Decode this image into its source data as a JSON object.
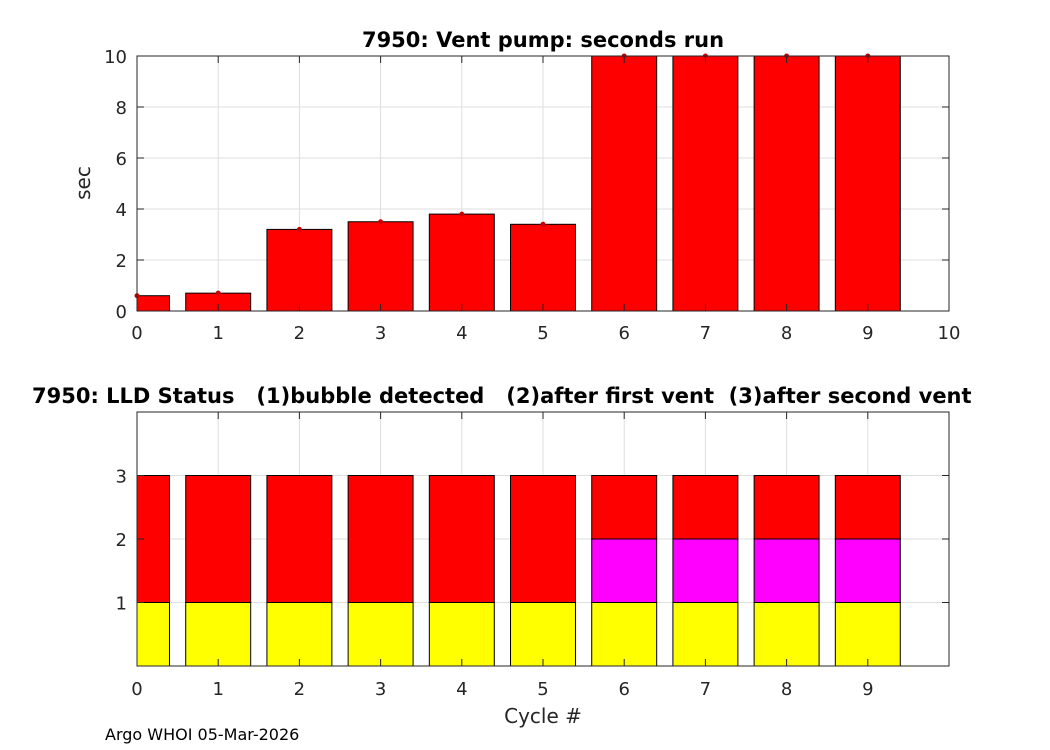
{
  "colors": {
    "bar_red": "#ff0000",
    "bar_yellow": "#ffff00",
    "bar_magenta": "#ff00ff",
    "axis": "#262626",
    "grid": "#dfdfdf"
  },
  "footer": "Argo WHOI 05-Mar-2026",
  "chart_data": [
    {
      "type": "bar",
      "title": "7950: Vent pump: seconds run",
      "xlabel": "",
      "ylabel": "sec",
      "xlim": [
        0,
        10
      ],
      "ylim": [
        0,
        10
      ],
      "x_ticks": [
        "0",
        "1",
        "2",
        "3",
        "4",
        "5",
        "6",
        "7",
        "8",
        "9",
        "10"
      ],
      "y_ticks": [
        "0",
        "2",
        "4",
        "6",
        "8",
        "10"
      ],
      "grid": true,
      "categories": [
        0,
        1,
        2,
        3,
        4,
        5,
        6,
        7,
        8,
        9
      ],
      "values": [
        0.6,
        0.7,
        3.2,
        3.5,
        3.8,
        3.4,
        10,
        10,
        10,
        10
      ]
    },
    {
      "type": "bar",
      "stacked": true,
      "title": "7950: LLD Status   (1)bubble detected   (2)after first vent  (3)after second vent",
      "xlabel": "Cycle #",
      "ylabel": "",
      "xlim": [
        0,
        10
      ],
      "ylim": [
        0,
        4
      ],
      "x_ticks": [
        "0",
        "1",
        "2",
        "3",
        "4",
        "5",
        "6",
        "7",
        "8",
        "9"
      ],
      "y_ticks": [
        "1",
        "2",
        "3"
      ],
      "grid": true,
      "categories": [
        0,
        1,
        2,
        3,
        4,
        5,
        6,
        7,
        8,
        9
      ],
      "series": [
        {
          "name": "(1)bubble detected",
          "color": "#ffff00",
          "values": [
            1,
            1,
            1,
            1,
            1,
            1,
            1,
            1,
            1,
            1
          ]
        },
        {
          "name": "(2)after first vent",
          "color": "#ff00ff",
          "values": [
            0,
            0,
            0,
            0,
            0,
            0,
            1,
            1,
            1,
            1
          ]
        },
        {
          "name": "(3)after second vent",
          "color": "#ff0000",
          "values": [
            2,
            2,
            2,
            2,
            2,
            2,
            1,
            1,
            1,
            1
          ]
        }
      ]
    }
  ]
}
